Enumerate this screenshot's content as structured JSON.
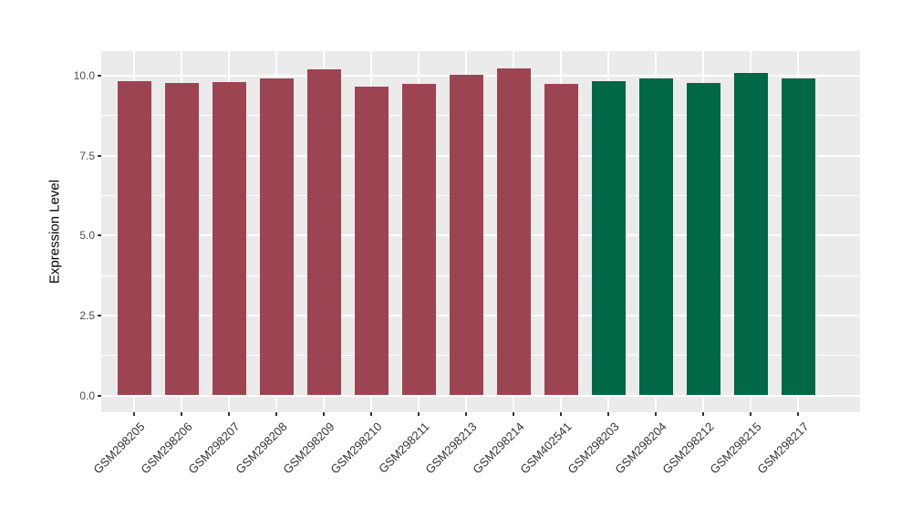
{
  "chart_data": {
    "type": "bar",
    "title": "",
    "xlabel": "",
    "ylabel": "Expression Level",
    "categories": [
      "GSM298205",
      "GSM298206",
      "GSM298207",
      "GSM298208",
      "GSM298209",
      "GSM298210",
      "GSM298211",
      "GSM298213",
      "GSM298214",
      "GSM402541",
      "GSM298203",
      "GSM298204",
      "GSM298212",
      "GSM298215",
      "GSM298217"
    ],
    "values": [
      9.84,
      9.78,
      9.81,
      9.91,
      10.2,
      9.67,
      9.74,
      10.02,
      10.24,
      9.75,
      9.84,
      9.91,
      9.77,
      10.08,
      9.92
    ],
    "bar_colors": [
      "#9D4452",
      "#9D4452",
      "#9D4452",
      "#9D4452",
      "#9D4452",
      "#9D4452",
      "#9D4452",
      "#9D4452",
      "#9D4452",
      "#9D4452",
      "#006747",
      "#006747",
      "#006747",
      "#006747",
      "#006747"
    ],
    "group_palette": {
      "group1_red": "#9D4452",
      "group2_green": "#006747"
    },
    "yticks": [
      0,
      2.5,
      5,
      7.5,
      10
    ],
    "ytick_labels": [
      "0.0",
      "2.5",
      "5.0",
      "7.5",
      "10.0"
    ],
    "ylim": [
      -0.55,
      10.77
    ],
    "grid": {
      "major_color": "#FFFFFF",
      "minor_color": "#FFFFFF",
      "grid_on": true
    },
    "panel_background": "#EBEBEB",
    "figure_background": "#FFFFFF",
    "legend": {
      "visible": false
    },
    "x_label_rotation_deg": 45
  }
}
